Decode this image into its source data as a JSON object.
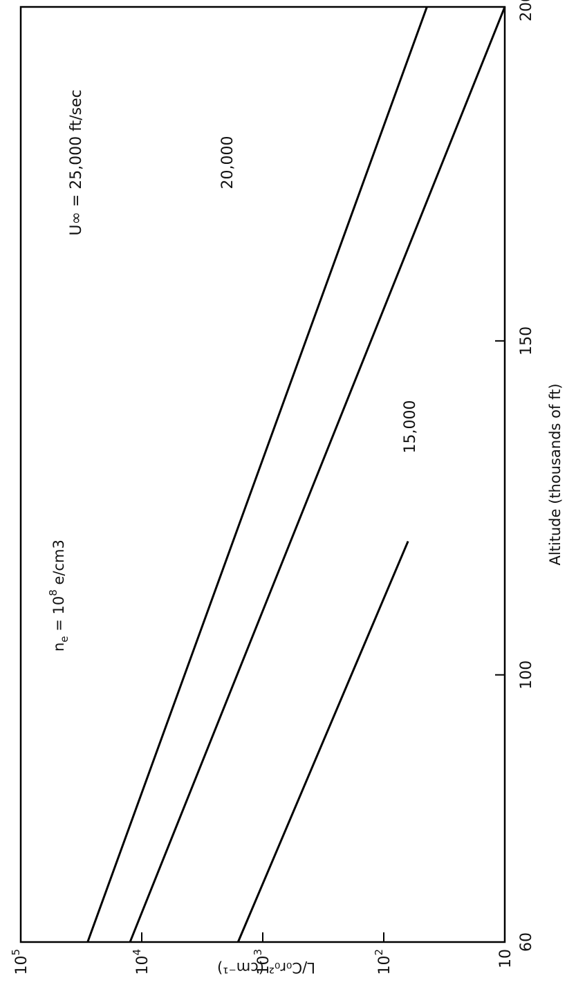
{
  "chart_data": {
    "type": "line",
    "title": "",
    "xlabel": "Altitude (thousands of ft)",
    "ylabel": "L/C₀r₀² (cm⁻¹)",
    "xscale": "linear",
    "yscale": "log",
    "xlim": [
      60,
      200
    ],
    "ylim": [
      10,
      100000
    ],
    "x_ticks": [
      {
        "value": 60,
        "label": "60"
      },
      {
        "value": 100,
        "label": "100"
      },
      {
        "value": 150,
        "label": "150"
      },
      {
        "value": 200,
        "label": "200"
      }
    ],
    "y_ticks": [
      {
        "value": 10,
        "label": "10"
      },
      {
        "value": 100,
        "label": "10",
        "exp": "2"
      },
      {
        "value": 1000,
        "label": "10",
        "exp": "3"
      },
      {
        "value": 10000,
        "label": "10",
        "exp": "4"
      },
      {
        "value": 100000,
        "label": "10",
        "exp": "5"
      }
    ],
    "series": [
      {
        "label": "U∞ = 25,000 ft/sec",
        "x": [
          60,
          200
        ],
        "y": [
          28000,
          44
        ]
      },
      {
        "label": "20,000",
        "x": [
          60,
          200
        ],
        "y": [
          12500,
          10
        ]
      },
      {
        "label": "15,000",
        "x": [
          60,
          120
        ],
        "y": [
          1600,
          63
        ]
      }
    ],
    "annotation": {
      "base": "n",
      "sub": "e",
      "mid": " = 10",
      "exp": "8",
      "unit": " e/cm3"
    },
    "grid": false,
    "legend": "none",
    "line_color": "#000000"
  }
}
